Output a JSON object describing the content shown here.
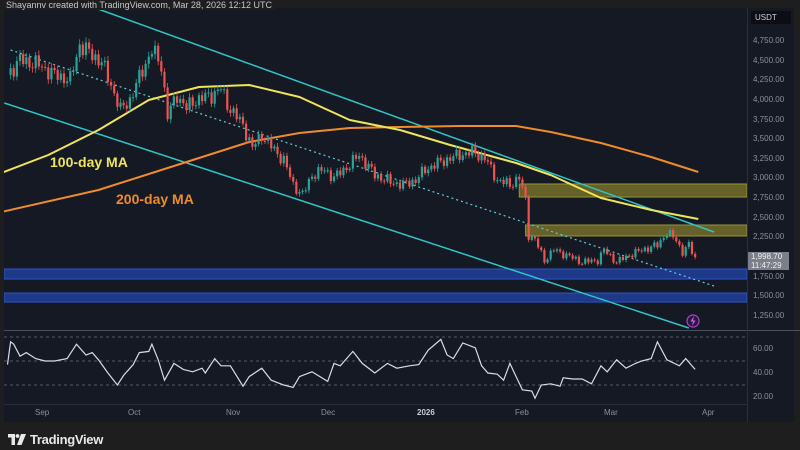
{
  "header": {
    "text": "Shayannv created with TradingView.com, Mar 28, 2026 12:12 UTC"
  },
  "footer": {
    "brand": "TradingView",
    "logo_icon": "tradingview-logo-icon"
  },
  "price_axis": {
    "currency": "USDT",
    "ticks": [
      "4,750.00",
      "4,500.00",
      "4,250.00",
      "4,000.00",
      "3,750.00",
      "3,500.00",
      "3,250.00",
      "3,000.00",
      "2,750.00",
      "2,500.00",
      "2,250.00",
      "1,750.00",
      "1,500.00",
      "1,250.00"
    ],
    "current_price": "1,998.70",
    "countdown": "11:47:29"
  },
  "rsi_axis": {
    "ticks": [
      "60.00",
      "40.00",
      "20.00"
    ]
  },
  "time_axis": {
    "ticks": [
      "Sep",
      "Oct",
      "Nov",
      "Dec",
      "2026",
      "Feb",
      "Mar",
      "Apr"
    ]
  },
  "annotations": {
    "ma100": "100-day MA",
    "ma200": "200-day MA"
  },
  "colors": {
    "background": "#151924",
    "up": "#26a69a",
    "down": "#ef5350",
    "channel": "#2ec4c4",
    "ma100": "#f0e55a",
    "ma200": "#f08c28",
    "supply_zone": "#807a2a",
    "demand_zone": "#1e3f9a",
    "rsi": "#d8dce6"
  },
  "chart_data": [
    {
      "type": "candlestick",
      "title": "",
      "ylim": [
        1100,
        4950
      ],
      "price_closes": [
        [
          "2025-08-21",
          4320
        ],
        [
          "2025-08-25",
          4510
        ],
        [
          "2025-08-31",
          4445
        ],
        [
          "2025-09-05",
          4320
        ],
        [
          "2025-09-10",
          4255
        ],
        [
          "2025-09-13",
          4700
        ],
        [
          "2025-09-20",
          4480
        ],
        [
          "2025-09-23",
          4190
        ],
        [
          "2025-09-26",
          3870
        ],
        [
          "2025-09-29",
          4000
        ],
        [
          "2025-10-03",
          4380
        ],
        [
          "2025-10-06",
          4635
        ],
        [
          "2025-10-09",
          4440
        ],
        [
          "2025-10-11",
          3800
        ],
        [
          "2025-10-14",
          4060
        ],
        [
          "2025-10-17",
          3900
        ],
        [
          "2025-10-20",
          4000
        ],
        [
          "2025-10-25",
          4060
        ],
        [
          "2025-10-28",
          4150
        ],
        [
          "2025-10-30",
          3940
        ],
        [
          "2025-11-04",
          3680
        ],
        [
          "2025-11-07",
          3390
        ],
        [
          "2025-11-10",
          3555
        ],
        [
          "2025-11-14",
          3360
        ],
        [
          "2025-11-17",
          3235
        ],
        [
          "2025-11-20",
          2920
        ],
        [
          "2025-11-23",
          2790
        ],
        [
          "2025-11-26",
          3045
        ],
        [
          "2025-11-30",
          3110
        ],
        [
          "2025-12-03",
          3010
        ],
        [
          "2025-12-08",
          3175
        ],
        [
          "2025-12-11",
          3300
        ],
        [
          "2025-12-16",
          3045
        ],
        [
          "2025-12-21",
          2955
        ],
        [
          "2025-12-25",
          2920
        ],
        [
          "2025-12-29",
          2980
        ],
        [
          "2026-01-01",
          3110
        ],
        [
          "2026-01-04",
          3175
        ],
        [
          "2026-01-09",
          3260
        ],
        [
          "2026-01-12",
          3300
        ],
        [
          "2026-01-16",
          3340
        ],
        [
          "2026-01-20",
          3260
        ],
        [
          "2026-01-24",
          2980
        ],
        [
          "2026-01-28",
          2920
        ],
        [
          "2026-01-31",
          3010
        ],
        [
          "2026-02-02",
          2725
        ],
        [
          "2026-02-03",
          2280
        ],
        [
          "2026-02-05",
          2220
        ],
        [
          "2026-02-08",
          1960
        ],
        [
          "2026-02-11",
          2090
        ],
        [
          "2026-02-15",
          2025
        ],
        [
          "2026-02-20",
          1935
        ],
        [
          "2026-02-25",
          1960
        ],
        [
          "2026-02-27",
          2090
        ],
        [
          "2026-03-03",
          1935
        ],
        [
          "2026-03-07",
          2025
        ],
        [
          "2026-03-11",
          2090
        ],
        [
          "2026-03-16",
          2150
        ],
        [
          "2026-03-19",
          2315
        ],
        [
          "2026-03-22",
          2220
        ],
        [
          "2026-03-24",
          2060
        ],
        [
          "2026-03-26",
          2150
        ],
        [
          "2026-03-28",
          1998.7
        ]
      ],
      "ma100": [
        [
          "2025-08-19",
          3070
        ],
        [
          "2025-09-03",
          3299
        ],
        [
          "2025-09-19",
          3617
        ],
        [
          "2025-10-05",
          3999
        ],
        [
          "2025-10-21",
          4164
        ],
        [
          "2025-11-06",
          4190
        ],
        [
          "2025-11-22",
          4037
        ],
        [
          "2025-12-08",
          3744
        ],
        [
          "2025-12-24",
          3617
        ],
        [
          "2026-01-09",
          3426
        ],
        [
          "2026-01-30",
          3197
        ],
        [
          "2026-02-10",
          3044
        ],
        [
          "2026-02-26",
          2751
        ],
        [
          "2026-03-14",
          2599
        ],
        [
          "2026-03-29",
          2484
        ]
      ],
      "ma200": [
        [
          "2025-08-19",
          2573
        ],
        [
          "2025-09-19",
          2853
        ],
        [
          "2025-10-21",
          3261
        ],
        [
          "2025-11-06",
          3464
        ],
        [
          "2025-11-22",
          3579
        ],
        [
          "2025-12-08",
          3642
        ],
        [
          "2025-12-24",
          3655
        ],
        [
          "2026-01-12",
          3668
        ],
        [
          "2026-01-30",
          3668
        ],
        [
          "2026-02-10",
          3592
        ],
        [
          "2026-02-26",
          3452
        ],
        [
          "2026-03-14",
          3273
        ],
        [
          "2026-03-29",
          3082
        ]
      ],
      "channel_upper": [
        [
          "2025-09-18",
          5170
        ],
        [
          "2026-04-03",
          2319
        ]
      ],
      "channel_lower": [
        [
          "2025-08-20",
          3961
        ],
        [
          "2026-03-26",
          1097
        ]
      ],
      "channel_mid": [
        [
          "2025-08-22",
          4635
        ],
        [
          "2026-04-03",
          1631
        ]
      ],
      "supply_zones": [
        {
          "from": "2026-01-31",
          "low": 2764,
          "high": 2930
        },
        {
          "from": "2026-02-02",
          "low": 2268,
          "high": 2408
        }
      ],
      "demand_zones": [
        {
          "low": 1720,
          "high": 1848
        },
        {
          "low": 1427,
          "high": 1542
        }
      ]
    },
    {
      "type": "line",
      "title": "",
      "ylim": [
        10,
        75
      ],
      "levels": [
        70,
        50,
        30
      ],
      "rsi": [
        [
          "2025-08-21",
          47
        ],
        [
          "2025-08-22",
          66
        ],
        [
          "2025-08-23",
          64
        ],
        [
          "2025-08-25",
          54
        ],
        [
          "2025-08-27",
          57
        ],
        [
          "2025-08-30",
          52
        ],
        [
          "2025-09-02",
          50
        ],
        [
          "2025-09-05",
          50
        ],
        [
          "2025-09-09",
          52
        ],
        [
          "2025-09-12",
          64
        ],
        [
          "2025-09-15",
          55
        ],
        [
          "2025-09-17",
          57
        ],
        [
          "2025-09-19",
          51
        ],
        [
          "2025-09-22",
          40
        ],
        [
          "2025-09-25",
          30
        ],
        [
          "2025-09-27",
          38
        ],
        [
          "2025-09-30",
          47
        ],
        [
          "2025-10-02",
          57
        ],
        [
          "2025-10-05",
          58
        ],
        [
          "2025-10-06",
          64
        ],
        [
          "2025-10-08",
          51
        ],
        [
          "2025-10-10",
          34
        ],
        [
          "2025-10-13",
          48
        ],
        [
          "2025-10-16",
          43
        ],
        [
          "2025-10-19",
          41
        ],
        [
          "2025-10-22",
          44
        ],
        [
          "2025-10-23",
          40
        ],
        [
          "2025-10-26",
          52
        ],
        [
          "2025-10-28",
          46
        ],
        [
          "2025-10-31",
          46
        ],
        [
          "2025-11-04",
          29
        ],
        [
          "2025-11-06",
          37
        ],
        [
          "2025-11-10",
          44
        ],
        [
          "2025-11-13",
          34
        ],
        [
          "2025-11-17",
          30
        ],
        [
          "2025-11-20",
          28
        ],
        [
          "2025-11-22",
          37
        ],
        [
          "2025-11-26",
          41
        ],
        [
          "2025-12-01",
          33
        ],
        [
          "2025-12-03",
          48
        ],
        [
          "2025-12-05",
          46
        ],
        [
          "2025-12-09",
          58
        ],
        [
          "2025-12-12",
          48
        ],
        [
          "2025-12-16",
          40
        ],
        [
          "2025-12-20",
          48
        ],
        [
          "2025-12-23",
          44
        ],
        [
          "2025-12-27",
          46
        ],
        [
          "2025-12-30",
          47
        ],
        [
          "2026-01-02",
          59
        ],
        [
          "2026-01-06",
          68
        ],
        [
          "2026-01-08",
          55
        ],
        [
          "2026-01-10",
          52
        ],
        [
          "2026-01-13",
          65
        ],
        [
          "2026-01-17",
          61
        ],
        [
          "2026-01-19",
          46
        ],
        [
          "2026-01-21",
          40
        ],
        [
          "2026-01-24",
          39
        ],
        [
          "2026-01-26",
          34
        ],
        [
          "2026-01-28",
          48
        ],
        [
          "2026-01-30",
          37
        ],
        [
          "2026-02-01",
          26
        ],
        [
          "2026-02-04",
          25
        ],
        [
          "2026-02-05",
          19
        ],
        [
          "2026-02-07",
          30
        ],
        [
          "2026-02-10",
          31
        ],
        [
          "2026-02-13",
          29
        ],
        [
          "2026-02-14",
          36
        ],
        [
          "2026-02-17",
          35
        ],
        [
          "2026-02-20",
          35
        ],
        [
          "2026-02-23",
          31
        ],
        [
          "2026-02-26",
          46
        ],
        [
          "2026-02-28",
          41
        ],
        [
          "2026-03-03",
          51
        ],
        [
          "2026-03-06",
          44
        ],
        [
          "2026-03-09",
          48
        ],
        [
          "2026-03-11",
          50
        ],
        [
          "2026-03-14",
          52
        ],
        [
          "2026-03-16",
          66
        ],
        [
          "2026-03-19",
          51
        ],
        [
          "2026-03-23",
          46
        ],
        [
          "2026-03-25",
          52
        ],
        [
          "2026-03-28",
          43
        ]
      ]
    }
  ]
}
